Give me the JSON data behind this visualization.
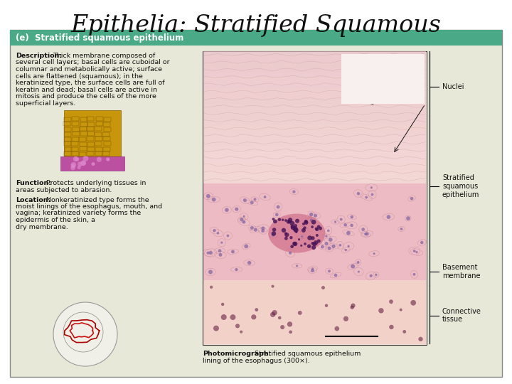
{
  "title": "Epithelia: Stratified Squamous",
  "title_fontsize": 24,
  "title_font": "serif",
  "bg_color": "#ffffff",
  "box_bg": "#e8e8d8",
  "box_border": "#999999",
  "header_bg": "#4aaa88",
  "header_text": "(e)  Stratified squamous epithelium",
  "header_text_color": "#ffffff",
  "header_fontsize": 8.5,
  "description_bold": "Description:",
  "description_text": "Thick membrane composed of\nseveral cell layers; basal cells are cuboidal or\ncolumnar and metabolically active; surface\ncells are flattened (squamous); in the\nkeratinized type, the surface cells are full of\nkeratin and dead; basal cells are active in\nmitosis and produce the cells of the more\nsuperficial layers.",
  "function_bold": "Function:",
  "function_text": "Protects underlying tissues in\nareas subjected to abrasion.",
  "location_bold": "Location:",
  "location_text": "Nonkeratinized type forms the\nmoist linings of the esophagus, mouth, and\nvagina; keratinized variety forms the\nepidermis of the skin, a\ndry membrane.",
  "photo_caption_bold": "Photomicrograph:",
  "photo_caption_text": "Stratified squamous epithelium\nlining of the esophagus (300×).",
  "label_nuclei": "Nuclei",
  "label_stratified": "Stratified\nsquamous\nepithelium",
  "label_basement": "Basement\nmembrane",
  "label_connective": "Connective\ntissue",
  "text_fontsize": 6.8,
  "label_fontsize": 7.0
}
